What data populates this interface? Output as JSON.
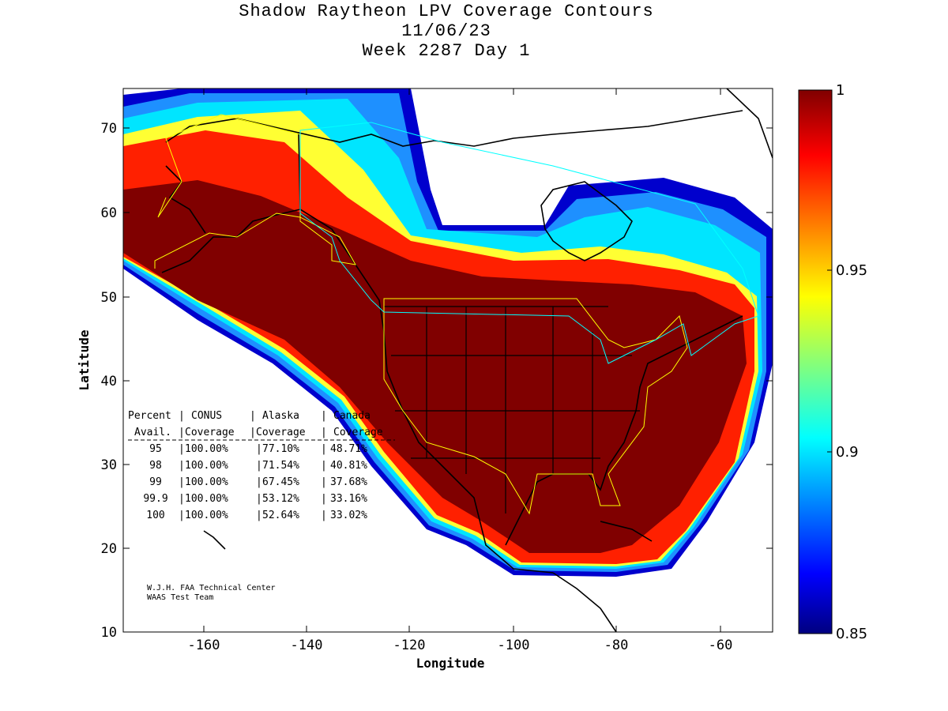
{
  "title": {
    "line1": "Shadow Raytheon LPV Coverage Contours",
    "line2": "11/06/23",
    "line3": "Week 2287 Day 1"
  },
  "axes": {
    "xlabel": "Longitude",
    "ylabel": "Latitude",
    "xticks": [
      "-160",
      "-140",
      "-120",
      "-100",
      "-80",
      "-60"
    ],
    "yticks": [
      "70",
      "60",
      "50",
      "40",
      "30",
      "20",
      "10"
    ]
  },
  "colorbar": {
    "ticks": [
      "1",
      "0.95",
      "0.9",
      "0.85"
    ],
    "min": 0.85,
    "max": 1,
    "colormap": "jet"
  },
  "table": {
    "header1": [
      "Percent",
      "CONUS",
      "Alaska",
      "Canada"
    ],
    "header2": [
      "Avail.",
      "Coverage",
      "Coverage",
      "Coverage"
    ],
    "rows": [
      {
        "percent": "95",
        "conus": "100.00%",
        "alaska": "77.10%",
        "canada": "48.71%"
      },
      {
        "percent": "98",
        "conus": "100.00%",
        "alaska": "71.54%",
        "canada": "40.81%"
      },
      {
        "percent": "99",
        "conus": "100.00%",
        "alaska": "67.45%",
        "canada": "37.68%"
      },
      {
        "percent": "99.9",
        "conus": "100.00%",
        "alaska": "53.12%",
        "canada": "33.16%"
      },
      {
        "percent": "100",
        "conus": "100.00%",
        "alaska": "52.64%",
        "canada": "33.02%"
      }
    ]
  },
  "credit": {
    "line1": "W.J.H. FAA Technical Center",
    "line2": "WAAS Test Team"
  },
  "colors": {
    "full_coverage": "#800000",
    "region_boundary_conus_alaska": "#ffff00",
    "region_boundary_canada": "#00ffff"
  }
}
